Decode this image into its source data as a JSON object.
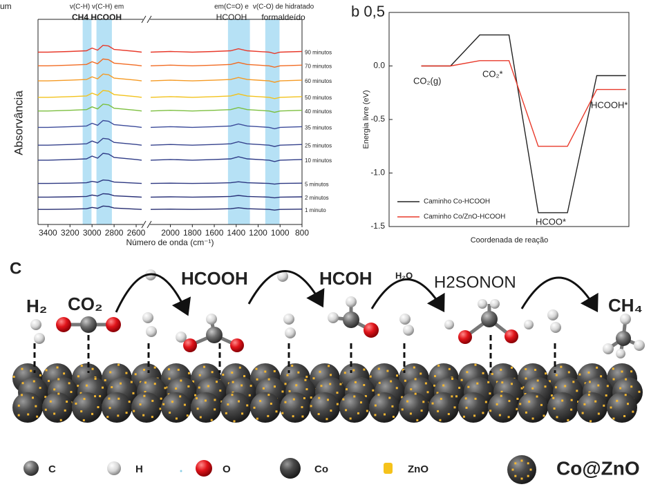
{
  "chart_data": [
    {
      "type": "line",
      "panel_label": "um",
      "x_label": "Número de onda (cm⁻¹)",
      "y_label": "Absorvância",
      "annotations": [
        [
          "v(C-H) v(C-H) em",
          "CH4 HCOOH"
        ],
        [
          "em(C=O) e",
          "HCOOH"
        ],
        [
          "v(C-O) de hidratado",
          "formaldeído"
        ]
      ],
      "shaded_ranges": [
        [
          3085,
          3005
        ],
        [
          2960,
          2820
        ],
        [
          1475,
          1275
        ],
        [
          1135,
          1005
        ]
      ],
      "shade_color": "#a9dcf3",
      "xlim": [
        3490,
        800
      ],
      "axis_break": [
        2550,
        2180
      ],
      "ylim": [
        0,
        15
      ],
      "xticks": [
        3400,
        3200,
        3000,
        2800,
        2600,
        2000,
        1800,
        1600,
        1400,
        1200,
        1000,
        800
      ],
      "x": [
        3490,
        3400,
        3200,
        3050,
        3000,
        2950,
        2900,
        2850,
        2800,
        2600,
        2550,
        2350,
        2180,
        2000,
        1800,
        1600,
        1450,
        1380,
        1300,
        1100,
        1050,
        1000,
        800
      ],
      "series": [
        {
          "name": "90 minutos",
          "color": "#e8392a",
          "values": [
            12.6,
            12.6,
            12.65,
            12.7,
            12.9,
            12.75,
            13.1,
            13.05,
            12.8,
            12.65,
            12.6,
            null,
            12.6,
            12.65,
            12.6,
            12.65,
            12.7,
            12.85,
            12.7,
            12.6,
            12.5,
            12.6,
            12.65
          ]
        },
        {
          "name": "70 minutos",
          "color": "#f26b22",
          "values": [
            11.6,
            11.6,
            11.65,
            11.7,
            11.9,
            11.75,
            12.1,
            12.05,
            11.8,
            11.65,
            11.6,
            null,
            11.6,
            11.65,
            11.6,
            11.65,
            11.7,
            11.85,
            11.7,
            11.6,
            11.5,
            11.6,
            11.65
          ]
        },
        {
          "name": "60 minutos",
          "color": "#f59a23",
          "values": [
            10.5,
            10.5,
            10.55,
            10.6,
            10.8,
            10.65,
            11.0,
            10.95,
            10.7,
            10.55,
            10.5,
            null,
            10.5,
            10.55,
            10.5,
            10.55,
            10.6,
            10.75,
            10.6,
            10.5,
            10.4,
            10.5,
            10.55
          ]
        },
        {
          "name": "50 minutos",
          "color": "#f2c21b",
          "values": [
            9.3,
            9.3,
            9.35,
            9.4,
            9.6,
            9.45,
            9.8,
            9.75,
            9.5,
            9.35,
            9.3,
            null,
            9.3,
            9.35,
            9.3,
            9.35,
            9.4,
            9.55,
            9.4,
            9.3,
            9.2,
            9.3,
            9.35
          ]
        },
        {
          "name": "40 minutos",
          "color": "#7cbf3f",
          "values": [
            8.3,
            8.3,
            8.35,
            8.4,
            8.6,
            8.45,
            8.8,
            8.75,
            8.5,
            8.35,
            8.3,
            null,
            8.3,
            8.35,
            8.3,
            8.35,
            8.4,
            8.55,
            8.4,
            8.3,
            8.2,
            8.3,
            8.35
          ]
        },
        {
          "name": "35 minutos",
          "color": "#3b4a9a",
          "values": [
            7.1,
            7.1,
            7.15,
            7.2,
            7.4,
            7.25,
            7.6,
            7.55,
            7.3,
            7.15,
            7.1,
            null,
            7.1,
            7.15,
            7.1,
            7.15,
            7.2,
            7.35,
            7.2,
            7.1,
            7.0,
            7.1,
            7.15
          ]
        },
        {
          "name": "25 minutos",
          "color": "#34418c",
          "values": [
            5.8,
            5.8,
            5.85,
            5.9,
            6.1,
            5.95,
            6.3,
            6.25,
            6.0,
            5.85,
            5.8,
            null,
            5.8,
            5.85,
            5.8,
            5.85,
            5.9,
            6.05,
            5.9,
            5.8,
            5.7,
            5.8,
            5.85
          ]
        },
        {
          "name": "10 minutos",
          "color": "#2d3a86",
          "values": [
            4.7,
            4.7,
            4.75,
            4.8,
            5.0,
            4.85,
            5.2,
            5.15,
            4.9,
            4.75,
            4.7,
            null,
            4.7,
            4.75,
            4.7,
            4.75,
            4.8,
            4.95,
            4.8,
            4.7,
            4.6,
            4.7,
            4.75
          ]
        },
        {
          "name": "5 minutos",
          "color": "#2b3680",
          "values": [
            3.0,
            3.0,
            3.02,
            3.05,
            3.15,
            3.08,
            3.25,
            3.22,
            3.1,
            3.02,
            3.0,
            null,
            3.0,
            3.02,
            3.0,
            3.02,
            3.05,
            3.12,
            3.05,
            3.0,
            2.95,
            3.0,
            3.02
          ]
        },
        {
          "name": "2 minutos",
          "color": "#283078",
          "values": [
            2.0,
            2.0,
            2.02,
            2.05,
            2.15,
            2.08,
            2.25,
            2.22,
            2.1,
            2.02,
            2.0,
            null,
            2.0,
            2.02,
            2.0,
            2.02,
            2.05,
            2.12,
            2.05,
            2.0,
            1.95,
            2.0,
            2.02
          ]
        },
        {
          "name": "1 minuto",
          "color": "#252c70",
          "values": [
            1.1,
            1.1,
            1.12,
            1.15,
            1.25,
            1.18,
            1.35,
            1.32,
            1.2,
            1.12,
            1.1,
            null,
            1.1,
            1.12,
            1.1,
            1.12,
            1.15,
            1.22,
            1.15,
            1.1,
            1.05,
            1.1,
            1.12
          ]
        }
      ]
    },
    {
      "type": "line",
      "panel_label": "b",
      "x_label": "Coordenada de reação",
      "y_label": "Energia livre (eV)",
      "annotations": [
        "CO₂(g)",
        "CO₂*",
        "HCOO*",
        "HCOOH*"
      ],
      "xlim": [
        -1.1,
        7.1
      ],
      "ylim": [
        -1.5,
        0.5
      ],
      "yticks": [
        {
          "value": 0.5,
          "label": "0,5"
        },
        {
          "value": 0,
          "label": "0.0"
        },
        {
          "value": -0.5,
          "label": "-0.5"
        },
        {
          "value": -1,
          "label": "-1.0"
        },
        {
          "value": -1.5,
          "label": "-1.5"
        }
      ],
      "legend": "lower left",
      "x": [
        0,
        1,
        2,
        3,
        4,
        5,
        6,
        7
      ],
      "series": [
        {
          "name": "Caminho Co-HCOOH",
          "color": "#222222",
          "values": [
            0,
            0,
            0.29,
            0.29,
            -1.37,
            -1.37,
            -0.09,
            -0.09
          ]
        },
        {
          "name": "Caminho Co/ZnO-HCOOH",
          "color": "#e8392a",
          "values": [
            0,
            0,
            0.05,
            0.05,
            -0.75,
            -0.75,
            -0.22,
            -0.22
          ]
        }
      ]
    }
  ],
  "panel_c": {
    "label": "C",
    "species": [
      "H₂",
      "CO₂",
      "HCOOH",
      "HCOH",
      "H₂O",
      "H2SONON",
      "CH₄"
    ],
    "legend": [
      "C",
      "H",
      "O",
      "Co",
      "ZnO",
      "Co@ZnO"
    ]
  }
}
